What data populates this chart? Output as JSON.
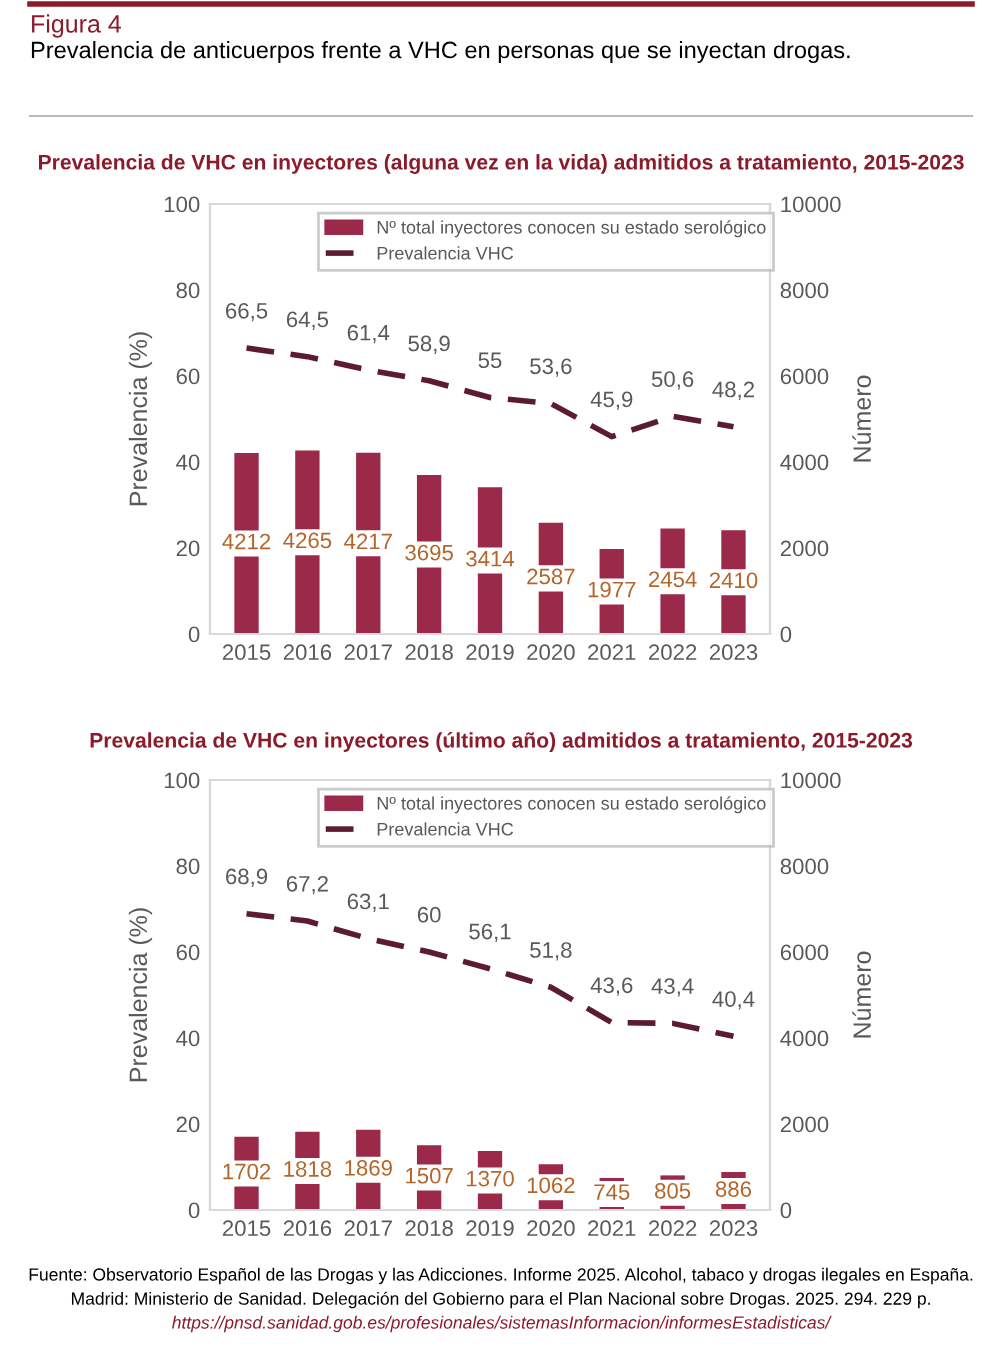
{
  "chart_data": [
    {
      "type": "bar",
      "title": "Prevalencia de VHC en inyectores (alguna vez en la vida) admitidos a tratamiento, 2015-2023",
      "ylabel": "Prevalencia (%)",
      "y2label": "Número",
      "categories": [
        "2015",
        "2016",
        "2017",
        "2018",
        "2019",
        "2020",
        "2021",
        "2022",
        "2023"
      ],
      "ylim": [
        0,
        100
      ],
      "yticks": [
        0,
        20,
        40,
        60,
        80,
        100
      ],
      "y2lim": [
        0,
        10000
      ],
      "y2ticks": [
        0,
        2000,
        4000,
        6000,
        8000,
        10000
      ],
      "legend": "top",
      "grid": false,
      "annotations": [
        "Figura 4",
        "Prevalencia de anticuerpos frente a VHC en personas que se inyectan drogas."
      ],
      "series": [
        {
          "name": "Nº total inyectores conocen su estado serológico",
          "axis": "y2",
          "color": "#9b2a4a",
          "values": [
            4212,
            4265,
            4217,
            3695,
            3414,
            2587,
            1977,
            2454,
            2410
          ],
          "value_labels": [
            "4212",
            "4265",
            "4217",
            "3695",
            "3414",
            "2587",
            "1977",
            "2454",
            "2410"
          ]
        },
        {
          "name": "Prevalencia VHC",
          "type": "line",
          "axis": "y",
          "color": "#5c1a33",
          "line_style": "dashed",
          "values": [
            66.5,
            64.5,
            61.4,
            58.9,
            55,
            53.6,
            45.9,
            50.6,
            48.2
          ],
          "value_labels": [
            "66,5",
            "64,5",
            "61,4",
            "58,9",
            "55",
            "53,6",
            "45,9",
            "50,6",
            "48,2"
          ]
        }
      ]
    },
    {
      "type": "bar",
      "title": "Prevalencia de VHC en inyectores (último año) admitidos a tratamiento, 2015-2023",
      "ylabel": "Prevalencia (%)",
      "y2label": "Número",
      "categories": [
        "2015",
        "2016",
        "2017",
        "2018",
        "2019",
        "2020",
        "2021",
        "2022",
        "2023"
      ],
      "ylim": [
        0,
        100
      ],
      "yticks": [
        0,
        20,
        40,
        60,
        80,
        100
      ],
      "y2lim": [
        0,
        10000
      ],
      "y2ticks": [
        0,
        2000,
        4000,
        6000,
        8000,
        10000
      ],
      "legend": "top",
      "grid": false,
      "annotations": [
        "Fuente: Observatorio Español de las Drogas y las Adicciones. Informe 2025. Alcohol, tabaco y drogas ilegales en España.",
        "Madrid: Ministerio de Sanidad. Delegación del Gobierno para el Plan Nacional sobre Drogas. 2025. 294. 229 p.",
        "https://pnsd.sanidad.gob.es/profesionales/sistemasInformacion/informesEstadisticas/"
      ],
      "series": [
        {
          "name": "Nº total inyectores conocen su estado serológico",
          "axis": "y2",
          "color": "#9b2a4a",
          "values": [
            1702,
            1818,
            1869,
            1507,
            1370,
            1062,
            745,
            805,
            886
          ],
          "value_labels": [
            "1702",
            "1818",
            "1869",
            "1507",
            "1370",
            "1062",
            "745",
            "805",
            "886"
          ]
        },
        {
          "name": "Prevalencia VHC",
          "type": "line",
          "axis": "y",
          "color": "#5c1a33",
          "line_style": "dashed",
          "values": [
            68.9,
            67.2,
            63.1,
            60,
            56.1,
            51.8,
            43.6,
            43.4,
            40.4
          ],
          "value_labels": [
            "68,9",
            "67,2",
            "63,1",
            "60",
            "56,1",
            "51,8",
            "43,6",
            "43,4",
            "40,4"
          ]
        }
      ]
    }
  ]
}
